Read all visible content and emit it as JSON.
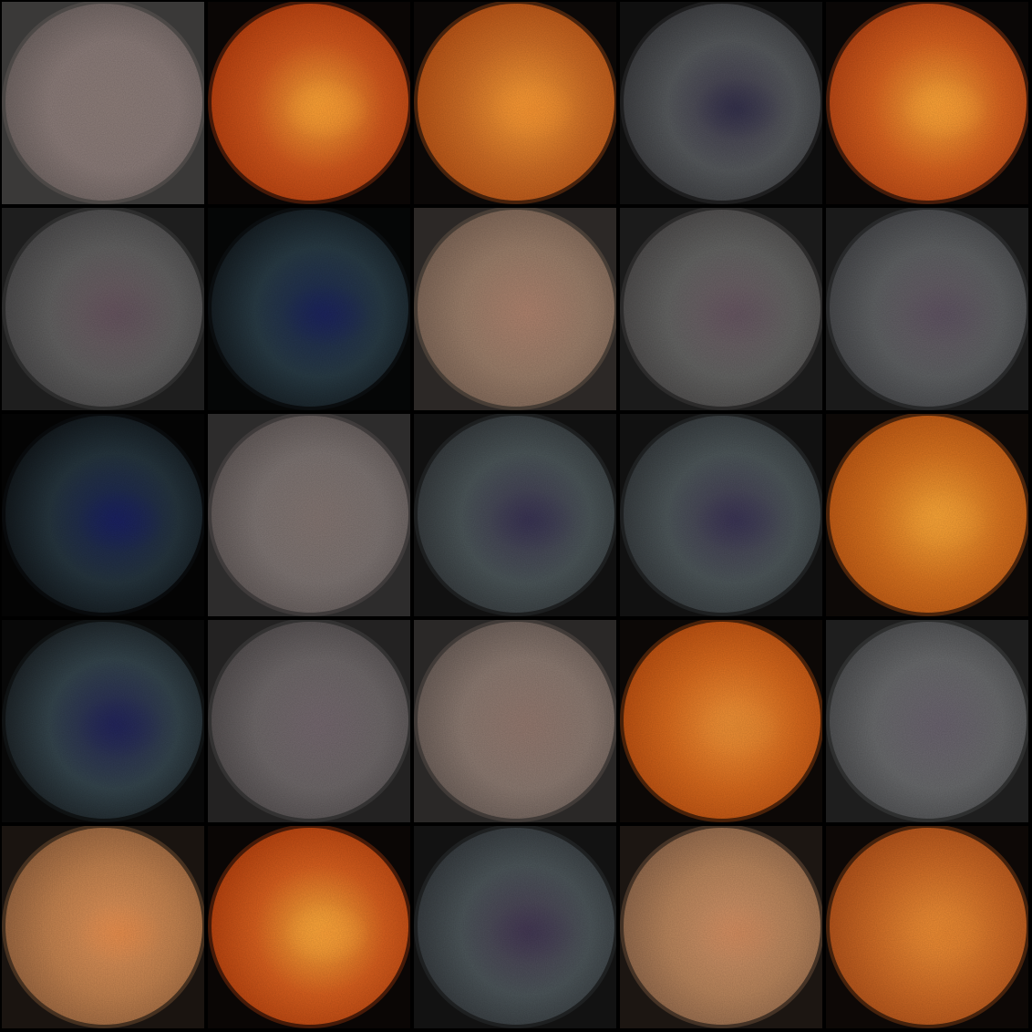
{
  "grid": {
    "rows": 5,
    "cols": 5,
    "description_free": true
  },
  "tiles": [
    {
      "style": "pale-grey",
      "bg": "#3a3938",
      "base": "#8b7c79",
      "center": "#8e7e7a",
      "edge": "#6f6462",
      "spot": "#8d7d7a",
      "spotStrength": 0.1
    },
    {
      "style": "orange",
      "bg": "#0a0605",
      "base": "#d2581d",
      "center": "#ffac39",
      "edge": "#b8400f",
      "spot": "#ff9d33",
      "spotStrength": 0.9
    },
    {
      "style": "orange",
      "bg": "#0b0807",
      "base": "#cf6d25",
      "center": "#ffa238",
      "edge": "#b85316",
      "spot": "#f99330",
      "spotStrength": 0.8
    },
    {
      "style": "blue-grey",
      "bg": "#0f0f0f",
      "base": "#56595c",
      "center": "#3f3a4f",
      "edge": "#3c3d40",
      "spot": "#2d2b4a",
      "spotStrength": 0.6
    },
    {
      "style": "orange",
      "bg": "#0a0706",
      "base": "#d8621f",
      "center": "#ffad3a",
      "edge": "#b84614",
      "spot": "#ff9f35",
      "spotStrength": 0.9
    },
    {
      "style": "blue-grey",
      "bg": "#1e1e1e",
      "base": "#626161",
      "center": "#6d5a63",
      "edge": "#4b4a4b",
      "spot": "#5c4c5a",
      "spotStrength": 0.4
    },
    {
      "style": "dark-teal",
      "bg": "#050606",
      "base": "#283a44",
      "center": "#1c2a57",
      "edge": "#151d22",
      "spot": "#1c2160",
      "spotStrength": 0.7
    },
    {
      "style": "tan",
      "bg": "#2c2826",
      "base": "#9b7e6a",
      "center": "#b0846f",
      "edge": "#7e6657",
      "spot": "#ad806b",
      "spotStrength": 0.2
    },
    {
      "style": "blue-grey",
      "bg": "#1b1b1b",
      "base": "#646463",
      "center": "#6e5d66",
      "edge": "#4d4b4b",
      "spot": "#5c4c5c",
      "spotStrength": 0.4
    },
    {
      "style": "blue-grey",
      "bg": "#1a1a1a",
      "base": "#5f6163",
      "center": "#665a66",
      "edge": "#46474a",
      "spot": "#554a5e",
      "spotStrength": 0.4
    },
    {
      "style": "dark-teal",
      "bg": "#040404",
      "base": "#25343d",
      "center": "#1a255a",
      "edge": "#12181c",
      "spot": "#1a1f64",
      "spotStrength": 0.7
    },
    {
      "style": "pale-grey",
      "bg": "#2d2c2c",
      "base": "#7d7472",
      "center": "#857773",
      "edge": "#625a59",
      "spot": "#7f706e",
      "spotStrength": 0.15
    },
    {
      "style": "blue-grey",
      "bg": "#111111",
      "base": "#4b5558",
      "center": "#403a55",
      "edge": "#353a3d",
      "spot": "#322d52",
      "spotStrength": 0.5
    },
    {
      "style": "blue-grey",
      "bg": "#111111",
      "base": "#4d5659",
      "center": "#423b56",
      "edge": "#363b3e",
      "spot": "#332e54",
      "spotStrength": 0.5
    },
    {
      "style": "orange",
      "bg": "#0d0907",
      "base": "#d9731f",
      "center": "#ffac39",
      "edge": "#bf5914",
      "spot": "#f9a035",
      "spotStrength": 0.7
    },
    {
      "style": "dark-teal",
      "bg": "#080808",
      "base": "#34444c",
      "center": "#26285a",
      "edge": "#1d2428",
      "spot": "#20235c",
      "spotStrength": 0.6
    },
    {
      "style": "pale-grey",
      "bg": "#232222",
      "base": "#6e6869",
      "center": "#766a70",
      "edge": "#544f50",
      "spot": "#6e606a",
      "spotStrength": 0.2
    },
    {
      "style": "pale-grey",
      "bg": "#2a2827",
      "base": "#8c7a71",
      "center": "#957a70",
      "edge": "#6c5f59",
      "spot": "#8f7369",
      "spotStrength": 0.15
    },
    {
      "style": "orange",
      "bg": "#0c0806",
      "base": "#d96a1d",
      "center": "#f9993a",
      "edge": "#bc5011",
      "spot": "#eb8c32",
      "spotStrength": 0.8
    },
    {
      "style": "pale-grey",
      "bg": "#1e1e1e",
      "base": "#696a6c",
      "center": "#6c6570",
      "edge": "#4e4f51",
      "spot": "#635c6a",
      "spotStrength": 0.2
    },
    {
      "style": "tan-orange",
      "bg": "#1a1410",
      "base": "#c3824f",
      "center": "#e8975a",
      "edge": "#9a6640",
      "spot": "#ec8a45",
      "spotStrength": 0.6
    },
    {
      "style": "orange",
      "bg": "#0a0605",
      "base": "#d85f1e",
      "center": "#ffb33d",
      "edge": "#b8430f",
      "spot": "#ffa038",
      "spotStrength": 0.9
    },
    {
      "style": "blue-grey",
      "bg": "#121212",
      "base": "#4c5559",
      "center": "#4a3e56",
      "edge": "#363b3f",
      "spot": "#3c3252",
      "spotStrength": 0.5
    },
    {
      "style": "tan-orange",
      "bg": "#1c1612",
      "base": "#b9855c",
      "center": "#d6966a",
      "edge": "#92694c",
      "spot": "#d58757",
      "spotStrength": 0.5
    },
    {
      "style": "orange",
      "bg": "#0d0806",
      "base": "#d06c26",
      "center": "#f59538",
      "edge": "#b2521a",
      "spot": "#e9852f",
      "spotStrength": 0.7
    }
  ]
}
